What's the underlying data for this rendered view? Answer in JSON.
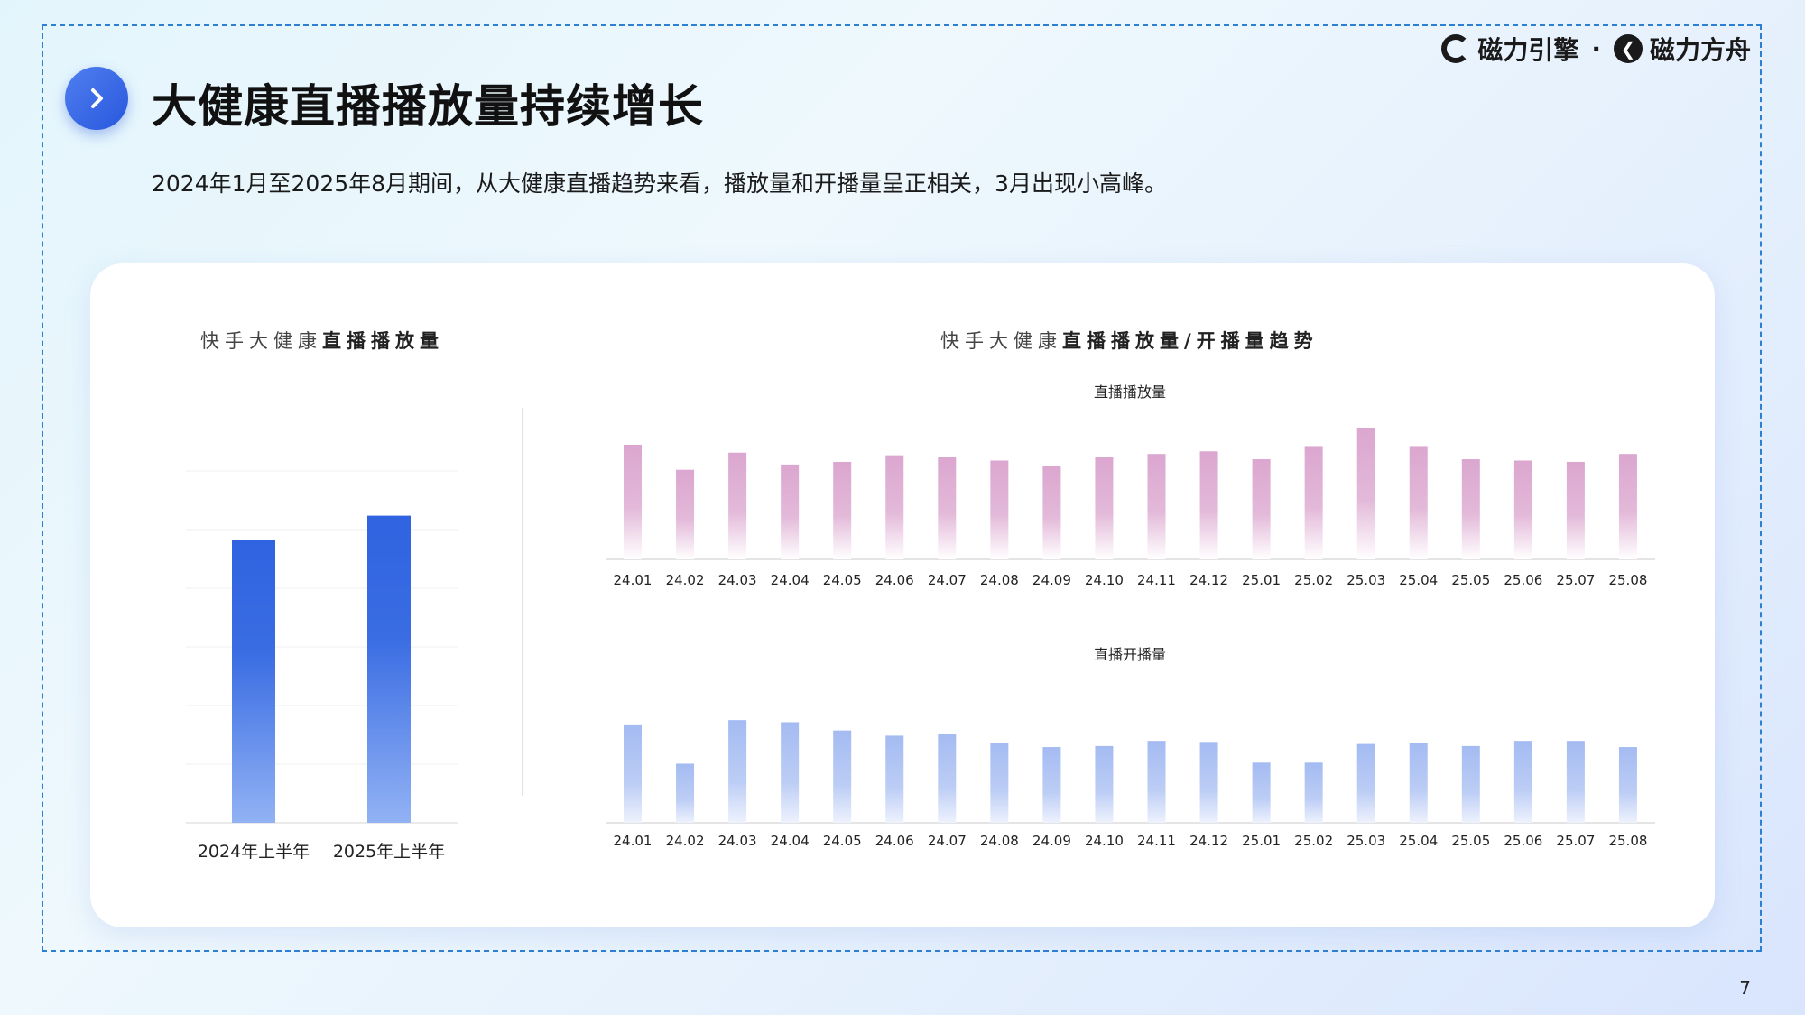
{
  "header": {
    "title": "大健康直播播放量持续增长",
    "subtitle": "2024年1月至2025年8月期间，从大健康直播趋势来看，播放量和开播量呈正相关，3月出现小高峰。",
    "logo_left": "磁力引擎",
    "logo_sep": "·",
    "logo_right": "磁力方舟",
    "icon": "chevron-right-icon"
  },
  "page_number": "7",
  "colors": {
    "accent": "#2957dd",
    "bar_blue_top": "#2f63e0",
    "bar_blue_bottom": "#8fb0f3",
    "pink": "#dca9d0",
    "light_blue": "#a9bff3",
    "frame": "#2d7fd0"
  },
  "chart_left_title": {
    "normal": "快手大健康",
    "bold": "直播播放量"
  },
  "chart_right_title": {
    "normal": "快手大健康",
    "bold": "直播播放量/开播量趋势"
  },
  "chart_data": [
    {
      "type": "bar",
      "title": "快手大健康直播播放量",
      "categories": [
        "2024年上半年",
        "2025年上半年"
      ],
      "values": [
        80.5,
        87.5
      ],
      "ylim": [
        0,
        100
      ],
      "grid": true
    },
    {
      "type": "bar",
      "title": "直播播放量",
      "categories": [
        "24.01",
        "24.02",
        "24.03",
        "24.04",
        "24.05",
        "24.06",
        "24.07",
        "24.08",
        "24.09",
        "24.10",
        "24.11",
        "24.12",
        "25.01",
        "25.02",
        "25.03",
        "25.04",
        "25.05",
        "25.06",
        "25.07",
        "25.08"
      ],
      "values": [
        87,
        68,
        81,
        72,
        74,
        79,
        78,
        75,
        71,
        78,
        80,
        82,
        76,
        86,
        100,
        86,
        76,
        75,
        74,
        80
      ],
      "ylim": [
        0,
        100
      ]
    },
    {
      "type": "bar",
      "title": "直播开播量",
      "categories": [
        "24.01",
        "24.02",
        "24.03",
        "24.04",
        "24.05",
        "24.06",
        "24.07",
        "24.08",
        "24.09",
        "24.10",
        "24.11",
        "24.12",
        "25.01",
        "25.02",
        "25.03",
        "25.04",
        "25.05",
        "25.06",
        "25.07",
        "25.08"
      ],
      "values": [
        94,
        57,
        99,
        97,
        89,
        84,
        86,
        77,
        73,
        74,
        79,
        78,
        58,
        58,
        76,
        77,
        74,
        79,
        79,
        73
      ],
      "ylim": [
        0,
        100
      ]
    }
  ]
}
